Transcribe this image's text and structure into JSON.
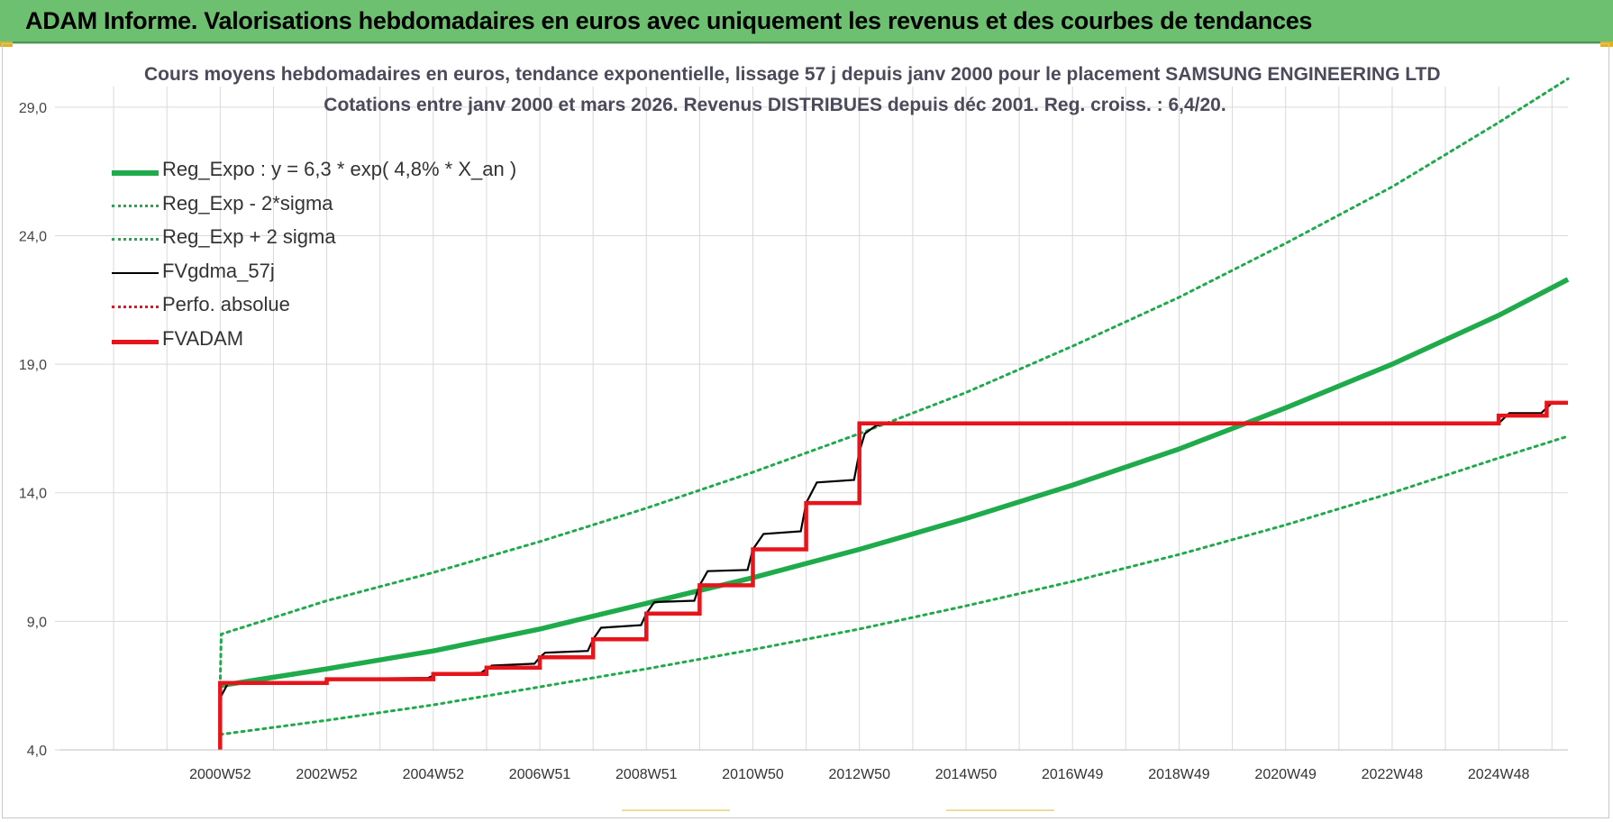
{
  "banner": {
    "title": "ADAM Informe. Valorisations hebdomadaires en euros avec uniquement les revenus et des courbes de tendances"
  },
  "colors": {
    "banner_bg": "#6cc070",
    "green": "#1faa4b",
    "red": "#e8141b",
    "black": "#000000",
    "grid": "#d9d9d9"
  },
  "chart_data": {
    "type": "line",
    "title_line1": "Cours moyens hebdomadaires en euros, tendance exponentielle, lissage 57 j depuis janv 2000  pour le placement SAMSUNG ENGINEERING LTD",
    "title_line2": "Cotations entre janv 2000 et mars 2026. Revenus DISTRIBUES depuis déc 2001. Reg. croiss. : 6,4/20.",
    "xlabel": "",
    "ylabel": "",
    "ylim": [
      4,
      29.8
    ],
    "xlim": [
      1998.0,
      2026.3
    ],
    "y_ticks": [
      "4,0",
      "9,0",
      "14,0",
      "19,0",
      "24,0",
      "29,0"
    ],
    "y_tick_values": [
      4,
      9,
      14,
      19,
      24,
      29
    ],
    "x_tick_labels": [
      "2000W52",
      "2002W52",
      "2004W52",
      "2006W51",
      "2008W51",
      "2010W50",
      "2012W50",
      "2014W50",
      "2016W49",
      "2018W49",
      "2020W49",
      "2022W48",
      "2024W48"
    ],
    "x_tick_values": [
      2001.0,
      2003.0,
      2005.0,
      2007.0,
      2009.0,
      2011.0,
      2013.0,
      2015.0,
      2017.0,
      2019.0,
      2021.0,
      2023.0,
      2025.0
    ],
    "x_grid_values": [
      1999.0,
      2000.0,
      2001.0,
      2002.0,
      2003.0,
      2004.0,
      2005.0,
      2006.0,
      2007.0,
      2008.0,
      2009.0,
      2010.0,
      2011.0,
      2012.0,
      2013.0,
      2014.0,
      2015.0,
      2016.0,
      2017.0,
      2018.0,
      2019.0,
      2020.0,
      2021.0,
      2022.0,
      2023.0,
      2024.0,
      2025.0,
      2026.0
    ],
    "grid": true,
    "legend_position": "top-left",
    "series": [
      {
        "name": "Reg_Expo : y = 6,3 * exp( 4,8% *  X_an )",
        "style": "solid-thick",
        "color": "#1faa4b",
        "x": [
          2001.0,
          2003.0,
          2005.0,
          2007.0,
          2009.0,
          2011.0,
          2013.0,
          2015.0,
          2017.0,
          2019.0,
          2021.0,
          2023.0,
          2025.0,
          2026.3
        ],
        "y": [
          6.5,
          7.15,
          7.85,
          8.7,
          9.7,
          10.7,
          11.8,
          13.0,
          14.3,
          15.7,
          17.3,
          19.0,
          20.9,
          22.3
        ]
      },
      {
        "name": "Reg_Exp - 2*sigma",
        "style": "dotted",
        "color": "#1faa4b",
        "x": [
          2001.0,
          2003.0,
          2005.0,
          2007.0,
          2009.0,
          2011.0,
          2013.0,
          2015.0,
          2017.0,
          2019.0,
          2021.0,
          2023.0,
          2025.0,
          2026.3
        ],
        "y": [
          4.6,
          5.15,
          5.75,
          6.45,
          7.15,
          7.9,
          8.7,
          9.6,
          10.55,
          11.6,
          12.75,
          14.0,
          15.35,
          16.2
        ]
      },
      {
        "name": "Reg_Exp + 2 sigma",
        "style": "dotted",
        "color": "#1faa4b",
        "x": [
          2001.0,
          2001.02,
          2003.0,
          2005.0,
          2007.0,
          2009.0,
          2011.0,
          2013.0,
          2015.0,
          2017.0,
          2019.0,
          2021.0,
          2023.0,
          2025.0,
          2026.3
        ],
        "y": [
          6.5,
          8.5,
          9.8,
          10.9,
          12.1,
          13.4,
          14.8,
          16.3,
          17.9,
          19.7,
          21.6,
          23.7,
          25.9,
          28.4,
          30.1
        ]
      },
      {
        "name": "FVgdma_57j",
        "style": "solid-thin",
        "color": "#000000",
        "x": [
          2001.0,
          2001.02,
          2001.15,
          2002.9,
          2003.0,
          2003.1,
          2004.9,
          2005.0,
          2005.1,
          2005.9,
          2006.0,
          2006.1,
          2006.9,
          2007.0,
          2007.1,
          2007.9,
          2008.0,
          2008.15,
          2008.9,
          2009.0,
          2009.15,
          2009.9,
          2010.0,
          2010.15,
          2010.9,
          2011.0,
          2011.2,
          2011.9,
          2012.0,
          2012.2,
          2012.9,
          2013.0,
          2013.1,
          2013.3,
          2013.5,
          2025.0,
          2025.1,
          2025.2,
          2025.8,
          2025.9,
          2026.0,
          2026.3
        ],
        "y": [
          4.0,
          6.1,
          6.6,
          6.6,
          6.68,
          6.76,
          6.8,
          6.88,
          6.96,
          7.0,
          7.15,
          7.28,
          7.35,
          7.6,
          7.78,
          7.85,
          8.3,
          8.75,
          8.85,
          9.3,
          9.75,
          9.8,
          10.4,
          10.95,
          11.0,
          11.8,
          12.4,
          12.5,
          13.6,
          14.4,
          14.5,
          15.6,
          16.3,
          16.6,
          16.7,
          16.7,
          16.9,
          17.1,
          17.1,
          17.3,
          17.5,
          17.5
        ]
      },
      {
        "name": "Perfo. absolue",
        "style": "dotted",
        "color": "#e8141b",
        "x": [],
        "y": []
      },
      {
        "name": "FVADAM",
        "style": "step-thick",
        "color": "#e8141b",
        "x": [
          2001.0,
          2001.0,
          2003.0,
          2003.0,
          2005.0,
          2005.0,
          2006.0,
          2006.0,
          2007.0,
          2007.0,
          2008.0,
          2008.0,
          2009.0,
          2009.0,
          2010.0,
          2010.0,
          2011.0,
          2011.0,
          2012.0,
          2012.0,
          2013.0,
          2013.0,
          2025.0,
          2025.0,
          2025.9,
          2025.9,
          2026.3
        ],
        "y": [
          4.0,
          6.6,
          6.6,
          6.75,
          6.75,
          6.95,
          6.95,
          7.2,
          7.2,
          7.6,
          7.6,
          8.3,
          8.3,
          9.3,
          9.3,
          10.4,
          10.4,
          11.8,
          11.8,
          13.6,
          13.6,
          16.7,
          16.7,
          17.0,
          17.0,
          17.5,
          17.5
        ]
      }
    ]
  }
}
